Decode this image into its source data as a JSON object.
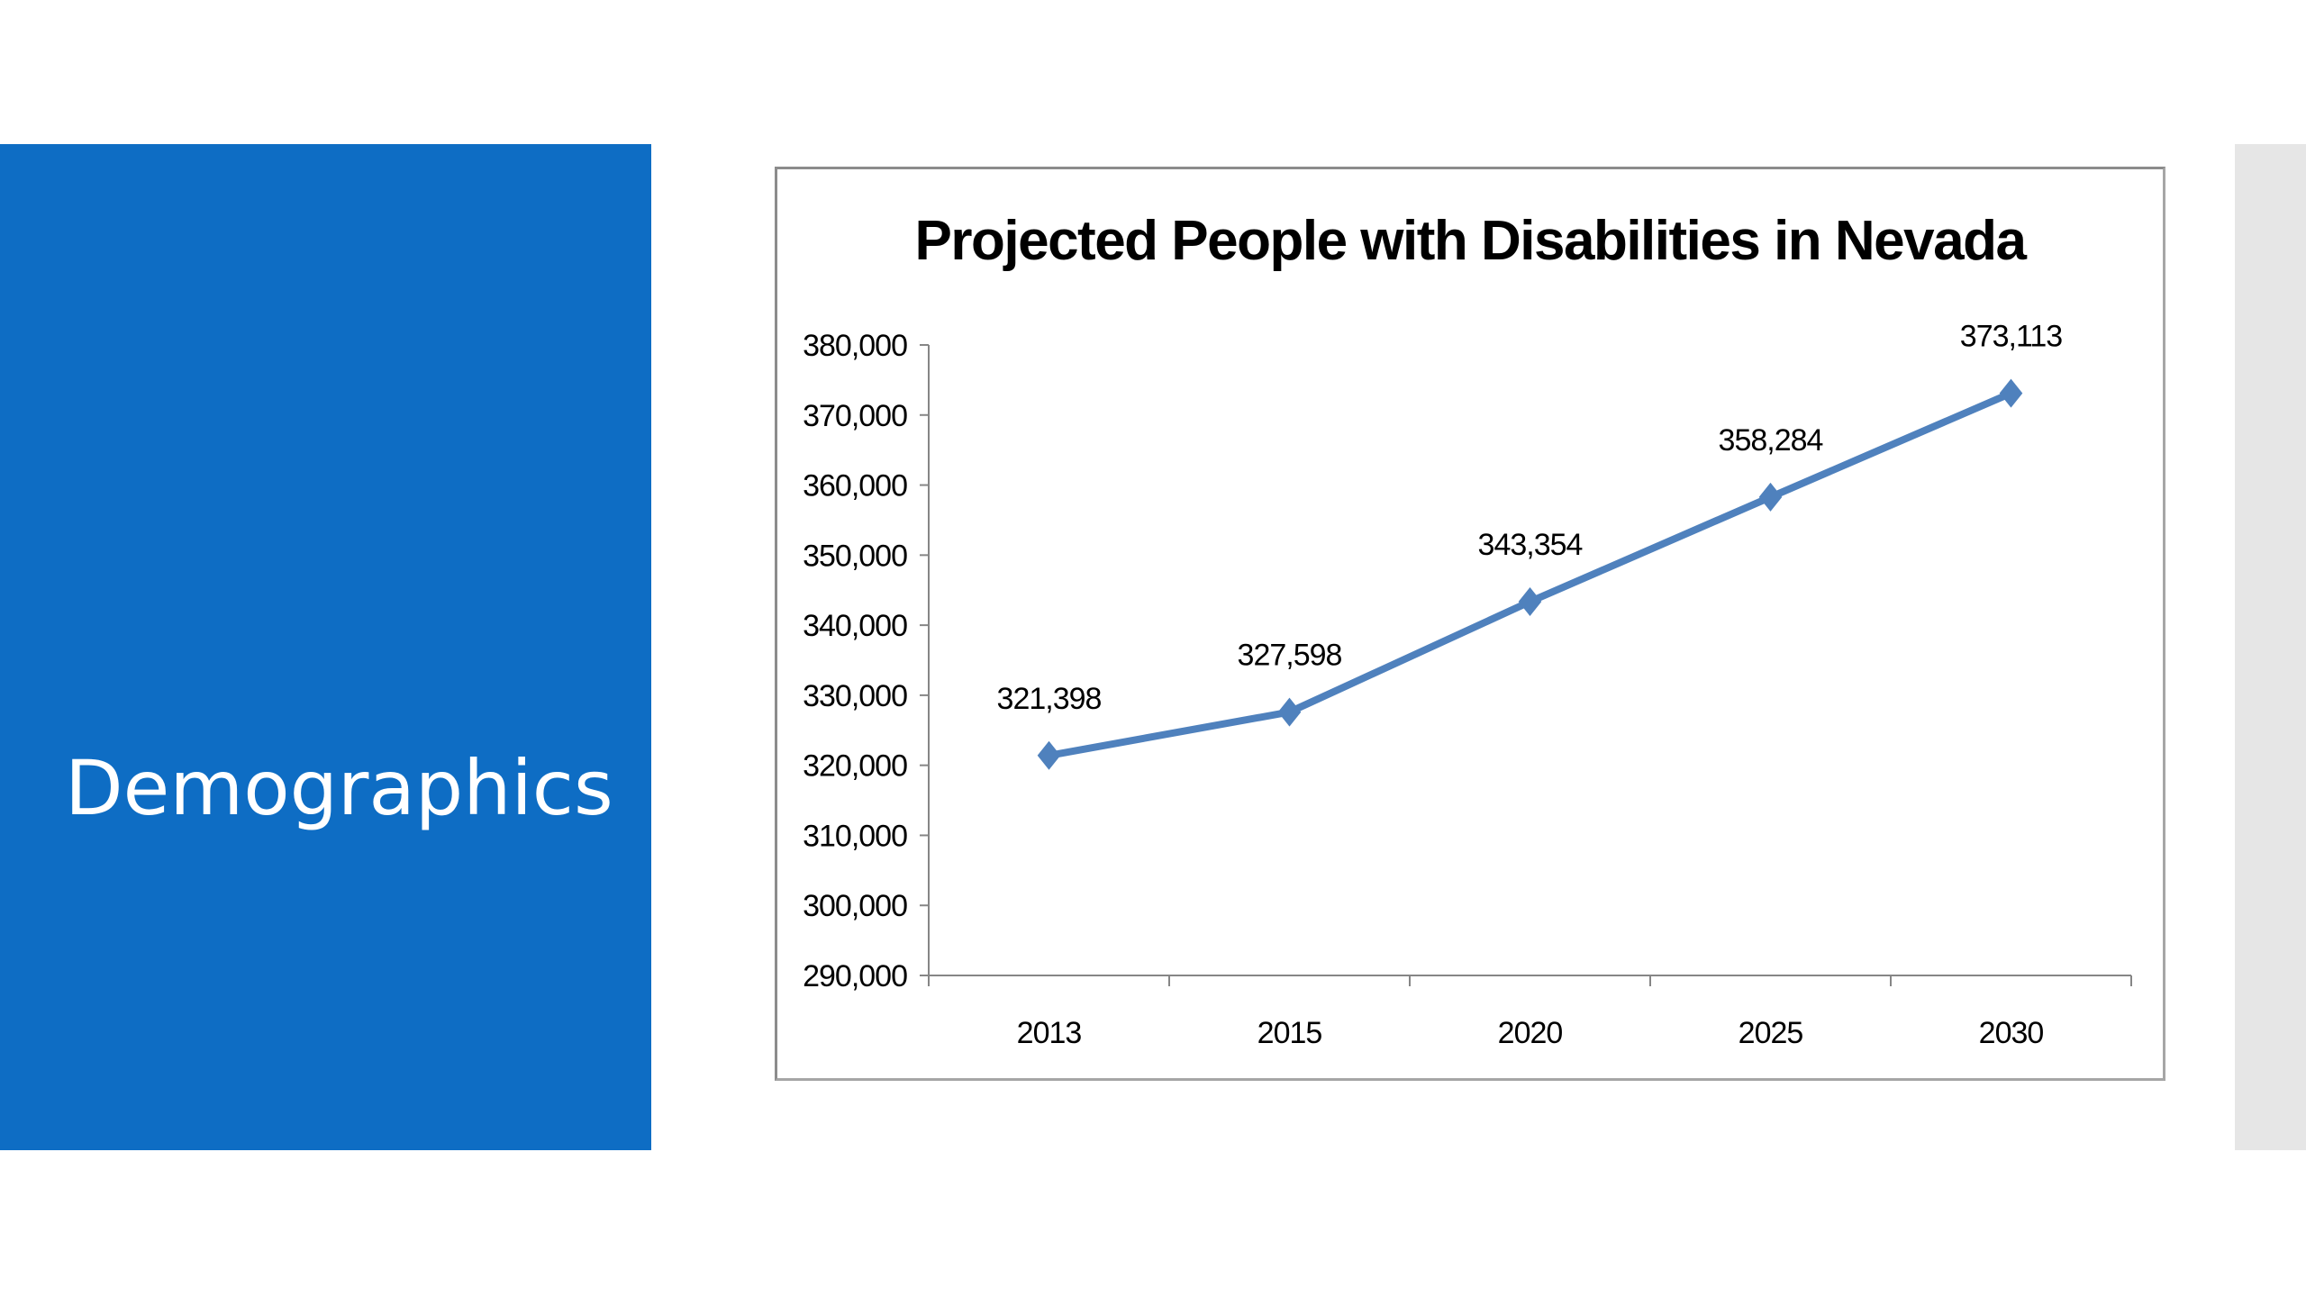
{
  "slide": {
    "title": "Demographics"
  },
  "colors": {
    "panel": "#0e6dc4",
    "line": "#4f81bd",
    "strip": "#e6e6e6"
  },
  "chart_data": {
    "type": "line",
    "title": "Projected People with Disabilities in Nevada",
    "xlabel": "",
    "ylabel": "",
    "categories": [
      "2013",
      "2015",
      "2020",
      "2025",
      "2030"
    ],
    "series": [
      {
        "values": [
          321398,
          327598,
          343354,
          358284,
          373113
        ]
      }
    ],
    "data_labels": [
      "321,398",
      "327,598",
      "343,354",
      "358,284",
      "373,113"
    ],
    "ylim": [
      290000,
      380000
    ],
    "yticks": [
      290000,
      300000,
      310000,
      320000,
      330000,
      340000,
      350000,
      360000,
      370000,
      380000
    ],
    "ytick_labels": [
      "290,000",
      "300,000",
      "310,000",
      "320,000",
      "330,000",
      "340,000",
      "350,000",
      "360,000",
      "370,000",
      "380,000"
    ],
    "marker": "diamond",
    "grid": false,
    "legend": "none"
  }
}
